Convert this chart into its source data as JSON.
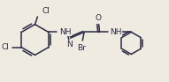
{
  "bg_color": "#f0ebe0",
  "line_color": "#2a2a45",
  "line_width": 1.1,
  "font_size": 6.5,
  "font_color": "#2a2a45",
  "fig_width": 1.91,
  "fig_height": 0.93,
  "dpi": 100,
  "xlim": [
    0,
    191
  ],
  "ylim": [
    0,
    93
  ]
}
